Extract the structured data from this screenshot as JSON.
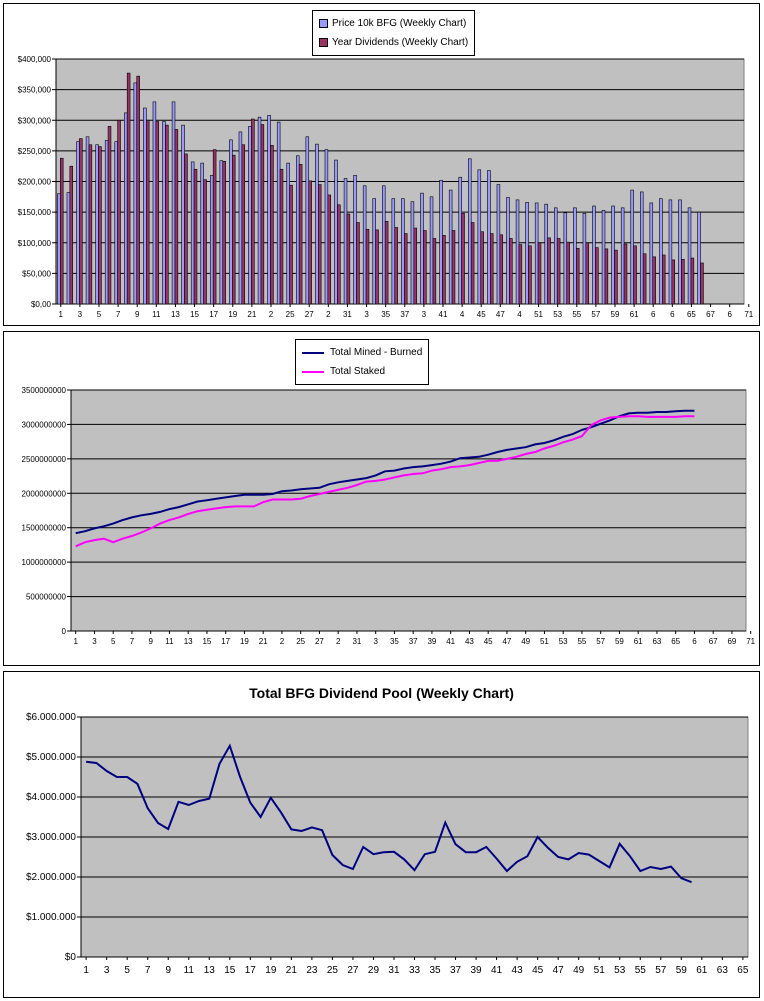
{
  "chart_data": [
    {
      "type": "bar",
      "legend_position": "top-center",
      "series": [
        {
          "name": "Price 10k BFG (Weekly Chart)",
          "color": "#9999ff",
          "values": [
            180,
            182,
            265,
            273,
            260,
            267,
            265,
            312,
            361,
            320,
            330,
            298,
            330,
            292,
            232,
            230,
            210,
            234,
            268,
            281,
            290,
            305,
            308,
            297,
            230,
            242,
            273,
            261,
            252,
            235,
            205,
            210,
            193,
            172,
            193,
            172,
            172,
            167,
            181,
            175,
            202,
            186,
            207,
            237,
            219,
            218,
            195,
            174,
            170,
            166,
            165,
            163,
            157,
            149,
            157,
            148,
            160,
            153,
            160,
            157,
            186,
            183,
            165,
            172,
            170,
            170,
            157,
            150,
            0,
            0,
            0,
            0
          ]
        },
        {
          "name": "Year Dividends (Weekly Chart)",
          "color": "#993366",
          "values": [
            238,
            225,
            270,
            260,
            257,
            290,
            300,
            377,
            372,
            300,
            298,
            292,
            285,
            245,
            220,
            203,
            252,
            233,
            243,
            260,
            302,
            293,
            259,
            220,
            194,
            228,
            201,
            195,
            178,
            162,
            147,
            133,
            122,
            121,
            135,
            125,
            115,
            124,
            120,
            107,
            112,
            120,
            148,
            133,
            118,
            115,
            113,
            107,
            97,
            95,
            100,
            108,
            107,
            101,
            91,
            100,
            92,
            90,
            88,
            98,
            95,
            82,
            77,
            80,
            72,
            73,
            75,
            67,
            0,
            0,
            0,
            0
          ]
        }
      ],
      "xlim": [
        1,
        72
      ],
      "x_tick_labels": [
        "1",
        "3",
        "5",
        "7",
        "9",
        "11",
        "13",
        "15",
        "17",
        "19",
        "21",
        "2",
        "25",
        "27",
        "2",
        "31",
        "3",
        "35",
        "37",
        "3",
        "41",
        "4",
        "45",
        "47",
        "4",
        "51",
        "53",
        "55",
        "57",
        "59",
        "61",
        "6",
        "6",
        "65",
        "67",
        "6",
        "71"
      ],
      "ylim": [
        0,
        400
      ],
      "y_tick_labels": [
        "$0,00",
        "$50,000",
        "$100,000",
        "$150,000",
        "$200,000",
        "$250,000",
        "$300,000",
        "$350,000",
        "$400,000"
      ],
      "grid": true
    },
    {
      "type": "line",
      "legend_position": "top-center",
      "series": [
        {
          "name": "Total Mined - Burned",
          "color": "#000080",
          "values": [
            1420,
            1450,
            1490,
            1520,
            1560,
            1610,
            1650,
            1680,
            1700,
            1730,
            1770,
            1800,
            1840,
            1880,
            1900,
            1920,
            1940,
            1960,
            1980,
            1980,
            1980,
            1990,
            2030,
            2040,
            2060,
            2070,
            2080,
            2130,
            2160,
            2180,
            2200,
            2220,
            2260,
            2320,
            2330,
            2360,
            2380,
            2390,
            2410,
            2430,
            2460,
            2510,
            2520,
            2530,
            2560,
            2600,
            2630,
            2650,
            2670,
            2710,
            2730,
            2770,
            2820,
            2860,
            2920,
            2960,
            3010,
            3060,
            3120,
            3160,
            3170,
            3170,
            3180,
            3180,
            3190,
            3200,
            3200
          ]
        },
        {
          "name": "Total Staked",
          "color": "#ff00ff",
          "values": [
            1230,
            1290,
            1320,
            1340,
            1290,
            1340,
            1380,
            1430,
            1490,
            1560,
            1610,
            1650,
            1700,
            1740,
            1760,
            1780,
            1800,
            1810,
            1810,
            1810,
            1870,
            1910,
            1910,
            1910,
            1920,
            1960,
            1990,
            2020,
            2050,
            2080,
            2120,
            2170,
            2180,
            2200,
            2230,
            2260,
            2280,
            2290,
            2330,
            2350,
            2380,
            2390,
            2410,
            2440,
            2470,
            2470,
            2500,
            2530,
            2570,
            2600,
            2650,
            2690,
            2740,
            2780,
            2830,
            2990,
            3060,
            3100,
            3110,
            3120,
            3120,
            3110,
            3110,
            3110,
            3110,
            3120,
            3120
          ]
        }
      ],
      "value_multiplier": 1000000,
      "xlim": [
        1,
        72
      ],
      "x_tick_labels": [
        "1",
        "3",
        "5",
        "7",
        "9",
        "11",
        "13",
        "15",
        "17",
        "19",
        "21",
        "2",
        "25",
        "27",
        "2",
        "31",
        "3",
        "35",
        "37",
        "39",
        "41",
        "43",
        "45",
        "47",
        "49",
        "51",
        "53",
        "55",
        "57",
        "59",
        "61",
        "63",
        "65",
        "6",
        "67",
        "69",
        "71"
      ],
      "ylim": [
        0,
        3500000000
      ],
      "y_tick_labels": [
        "0",
        "500000000",
        "1000000000",
        "1500000000",
        "2000000000",
        "2500000000",
        "3000000000",
        "3500000000"
      ],
      "grid": true
    },
    {
      "type": "line",
      "title": "Total BFG Dividend Pool (Weekly Chart)",
      "series": [
        {
          "color": "#000080",
          "values": [
            4.88,
            4.85,
            4.65,
            4.5,
            4.5,
            4.33,
            3.72,
            3.35,
            3.2,
            3.88,
            3.8,
            3.9,
            3.96,
            4.83,
            5.28,
            4.5,
            3.86,
            3.5,
            3.98,
            3.61,
            3.19,
            3.15,
            3.24,
            3.17,
            2.55,
            2.3,
            2.2,
            2.75,
            2.57,
            2.62,
            2.63,
            2.44,
            2.17,
            2.57,
            2.63,
            3.36,
            2.82,
            2.62,
            2.62,
            2.75,
            2.46,
            2.15,
            2.38,
            2.52,
            3.0,
            2.73,
            2.5,
            2.44,
            2.6,
            2.56,
            2.4,
            2.24,
            2.83,
            2.52,
            2.15,
            2.25,
            2.2,
            2.26,
            1.97,
            1.87
          ]
        }
      ],
      "value_multiplier": 1000000,
      "xlim": [
        1,
        65
      ],
      "x_tick_labels": [
        "1",
        "3",
        "5",
        "7",
        "9",
        "11",
        "13",
        "15",
        "17",
        "19",
        "21",
        "23",
        "25",
        "27",
        "29",
        "31",
        "33",
        "35",
        "37",
        "39",
        "41",
        "43",
        "45",
        "47",
        "49",
        "51",
        "53",
        "55",
        "57",
        "59",
        "61",
        "63",
        "65"
      ],
      "ylim": [
        0,
        6000000
      ],
      "y_tick_labels": [
        "$0",
        "$1.000.000",
        "$2.000.000",
        "$3.000.000",
        "$4.000.000",
        "$5.000.000",
        "$6.000.000"
      ],
      "grid": true
    }
  ]
}
